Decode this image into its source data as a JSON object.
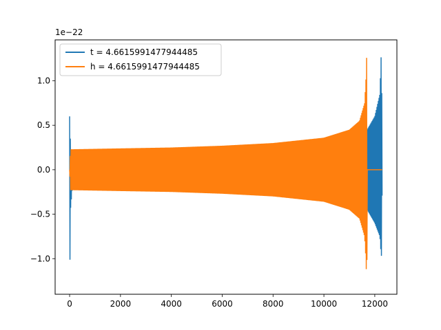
{
  "chart_data": {
    "type": "line",
    "offset_label": "1e−22",
    "xlim": [
      -570,
      12870
    ],
    "ylim": [
      -1.4e-22,
      1.46e-22
    ],
    "x_ticks": [
      {
        "value": 0,
        "label": "0"
      },
      {
        "value": 2000,
        "label": "2000"
      },
      {
        "value": 4000,
        "label": "4000"
      },
      {
        "value": 6000,
        "label": "6000"
      },
      {
        "value": 8000,
        "label": "8000"
      },
      {
        "value": 10000,
        "label": "10000"
      },
      {
        "value": 12000,
        "label": "12000"
      }
    ],
    "y_ticks": [
      {
        "value": -1e-22,
        "label": "−1.0"
      },
      {
        "value": -5e-23,
        "label": "−0.5"
      },
      {
        "value": 0.0,
        "label": "0.0"
      },
      {
        "value": 5e-23,
        "label": "0.5"
      },
      {
        "value": 1e-22,
        "label": "1.0"
      }
    ],
    "grid": false,
    "legend_position": "upper-left",
    "series": [
      {
        "name": "t = 4.6615991477944485",
        "color": "#1f77b4",
        "x_range": [
          0,
          12300
        ],
        "envelope_x": [
          0,
          40,
          100,
          2000,
          4000,
          6000,
          8000,
          10000,
          11000,
          11500,
          11690,
          11700,
          11720,
          11800,
          12000,
          12200,
          12260,
          12300
        ],
        "envelope_upper": [
          6e-23,
          2.3e-23,
          2.2e-23,
          2.3e-23,
          2.4e-23,
          2.5e-23,
          2.7e-23,
          3.2e-23,
          3.7e-23,
          4.3e-23,
          4.5e-23,
          4.5e-23,
          4.6e-23,
          5e-23,
          6e-23,
          8.5e-23,
          1.37e-22,
          0.0
        ],
        "envelope_lower": [
          -1.31e-22,
          -4.3e-23,
          -2.2e-23,
          -2.3e-23,
          -2.4e-23,
          -2.5e-23,
          -2.7e-23,
          -3.2e-23,
          -3.7e-23,
          -4.3e-23,
          -4.5e-23,
          -4.5e-23,
          -4.6e-23,
          -5e-23,
          -6e-23,
          -7.5e-23,
          -1e-22,
          0.0
        ]
      },
      {
        "name": "h = 4.6615991477944485",
        "color": "#ff7f0e",
        "x_range": [
          0,
          12300
        ],
        "envelope_x": [
          0,
          40,
          100,
          2000,
          4000,
          6000,
          8000,
          10000,
          11000,
          11400,
          11600,
          11650,
          11690,
          11700,
          12300
        ],
        "envelope_upper": [
          0.0,
          2.3e-23,
          2.3e-23,
          2.4e-23,
          2.5e-23,
          2.7e-23,
          3e-23,
          3.6e-23,
          4.5e-23,
          5.5e-23,
          7.5e-23,
          1e-22,
          1.36e-22,
          0.0,
          0.0
        ],
        "envelope_lower": [
          0.0,
          -2.3e-23,
          -2.3e-23,
          -2.4e-23,
          -2.5e-23,
          -2.7e-23,
          -3e-23,
          -3.6e-23,
          -4.5e-23,
          -5.5e-23,
          -7.5e-23,
          -1e-22,
          -1.31e-22,
          0.0,
          0.0
        ]
      }
    ]
  }
}
